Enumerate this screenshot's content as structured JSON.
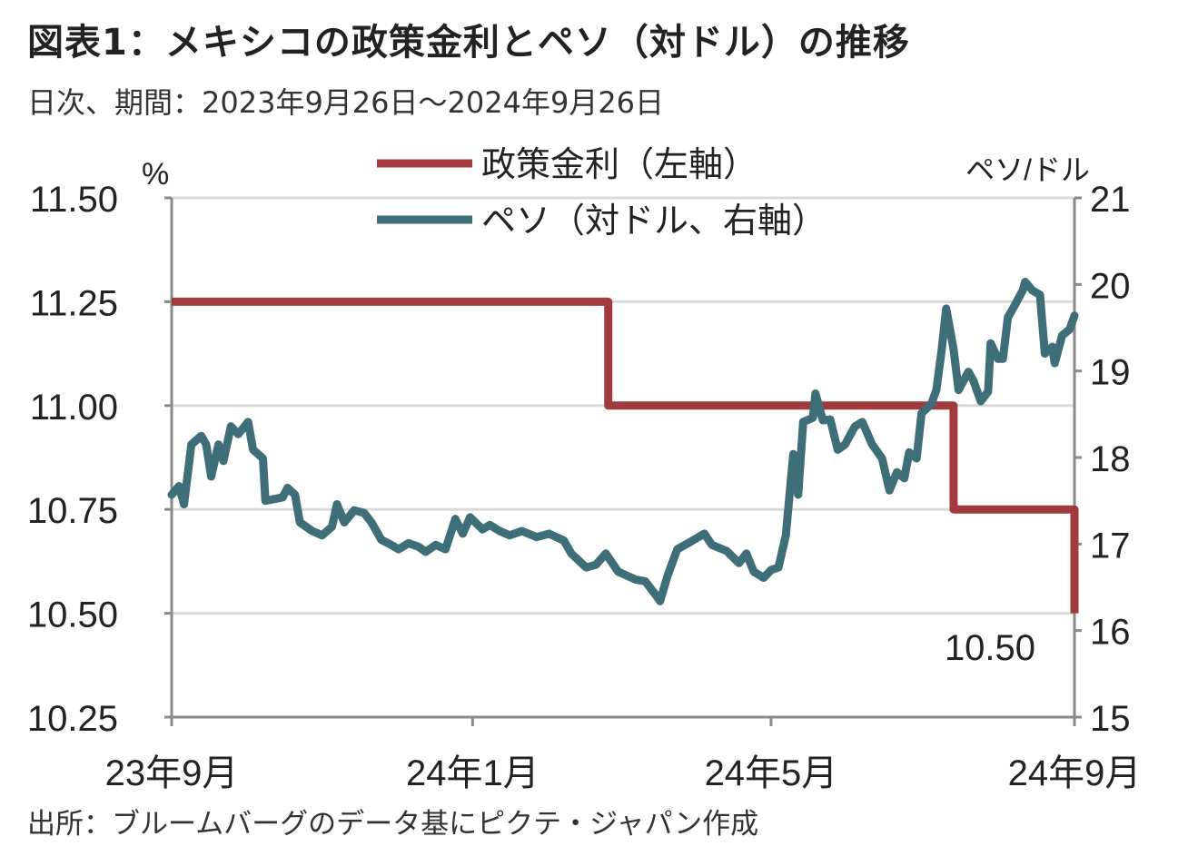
{
  "title": "図表1：メキシコの政策金利とペソ（対ドル）の推移",
  "subtitle": "日次、期間：2023年9月26日～2024年9月26日",
  "source": "出所：ブルームバーグのデータ基にピクテ・ジャパン作成",
  "chart_data": {
    "type": "line",
    "title": "図表1：メキシコの政策金利とペソ（対ドル）の推移",
    "subtitle": "日次、期間：2023年9月26日～2024年9月26日",
    "legend_position": "top-center",
    "grid": true,
    "x_range": [
      "2023-09-26",
      "2024-09-26"
    ],
    "x_ticks": [
      {
        "date": "2023-09-26",
        "label": "23年9月"
      },
      {
        "date": "2024-01-26",
        "label": "24年1月"
      },
      {
        "date": "2024-05-26",
        "label": "24年5月"
      },
      {
        "date": "2024-09-26",
        "label": "24年9月"
      }
    ],
    "y_left": {
      "label": "%",
      "range": [
        10.25,
        11.5
      ],
      "ticks": [
        "10.25",
        "10.50",
        "10.75",
        "11.00",
        "11.25",
        "11.50"
      ]
    },
    "y_right": {
      "label": "ペソ/ドル",
      "range": [
        15,
        21
      ],
      "ticks": [
        "15",
        "16",
        "17",
        "18",
        "19",
        "20",
        "21"
      ]
    },
    "annotation": "10.50",
    "colors": {
      "policy_rate": "#A23B40",
      "peso": "#3E6E78",
      "grid": "#d9d9d9",
      "axis": "#8a8a8a"
    },
    "series": [
      {
        "name": "政策金利（左軸）",
        "axis": "left",
        "step": true,
        "points": [
          [
            "2023-09-26",
            11.25
          ],
          [
            "2024-03-21",
            11.0
          ],
          [
            "2024-08-08",
            10.75
          ],
          [
            "2024-09-26",
            10.5
          ]
        ]
      },
      {
        "name": "ペソ（対ドル、右軸）",
        "axis": "right",
        "points": [
          [
            "2023-09-26",
            17.57
          ],
          [
            "2023-09-29",
            17.67
          ],
          [
            "2023-10-01",
            17.46
          ],
          [
            "2023-10-04",
            18.15
          ],
          [
            "2023-10-08",
            18.25
          ],
          [
            "2023-10-10",
            18.15
          ],
          [
            "2023-10-12",
            17.78
          ],
          [
            "2023-10-15",
            18.15
          ],
          [
            "2023-10-17",
            17.96
          ],
          [
            "2023-10-20",
            18.36
          ],
          [
            "2023-10-23",
            18.27
          ],
          [
            "2023-10-27",
            18.41
          ],
          [
            "2023-10-29",
            18.09
          ],
          [
            "2023-11-02",
            17.99
          ],
          [
            "2023-11-03",
            17.5
          ],
          [
            "2023-11-10",
            17.54
          ],
          [
            "2023-11-12",
            17.65
          ],
          [
            "2023-11-15",
            17.57
          ],
          [
            "2023-11-17",
            17.25
          ],
          [
            "2023-11-22",
            17.15
          ],
          [
            "2023-11-26",
            17.1
          ],
          [
            "2023-11-30",
            17.2
          ],
          [
            "2023-12-02",
            17.46
          ],
          [
            "2023-12-05",
            17.25
          ],
          [
            "2023-12-09",
            17.39
          ],
          [
            "2023-12-13",
            17.36
          ],
          [
            "2023-12-16",
            17.25
          ],
          [
            "2023-12-20",
            17.05
          ],
          [
            "2023-12-24",
            16.99
          ],
          [
            "2023-12-27",
            16.94
          ],
          [
            "2023-12-31",
            17.01
          ],
          [
            "2024-01-04",
            16.97
          ],
          [
            "2024-01-07",
            16.91
          ],
          [
            "2024-01-11",
            16.99
          ],
          [
            "2024-01-15",
            16.94
          ],
          [
            "2024-01-19",
            17.29
          ],
          [
            "2024-01-22",
            17.12
          ],
          [
            "2024-01-25",
            17.31
          ],
          [
            "2024-01-30",
            17.17
          ],
          [
            "2024-02-02",
            17.22
          ],
          [
            "2024-02-06",
            17.15
          ],
          [
            "2024-02-10",
            17.1
          ],
          [
            "2024-02-15",
            17.15
          ],
          [
            "2024-02-21",
            17.08
          ],
          [
            "2024-02-26",
            17.12
          ],
          [
            "2024-03-03",
            17.04
          ],
          [
            "2024-03-06",
            16.89
          ],
          [
            "2024-03-12",
            16.73
          ],
          [
            "2024-03-16",
            16.76
          ],
          [
            "2024-03-20",
            16.89
          ],
          [
            "2024-03-25",
            16.68
          ],
          [
            "2024-04-01",
            16.59
          ],
          [
            "2024-04-05",
            16.57
          ],
          [
            "2024-04-09",
            16.42
          ],
          [
            "2024-04-11",
            16.34
          ],
          [
            "2024-04-14",
            16.63
          ],
          [
            "2024-04-18",
            16.94
          ],
          [
            "2024-04-23",
            17.02
          ],
          [
            "2024-04-29",
            17.12
          ],
          [
            "2024-05-02",
            16.99
          ],
          [
            "2024-05-08",
            16.92
          ],
          [
            "2024-05-13",
            16.78
          ],
          [
            "2024-05-16",
            16.89
          ],
          [
            "2024-05-19",
            16.68
          ],
          [
            "2024-05-23",
            16.61
          ],
          [
            "2024-05-26",
            16.7
          ],
          [
            "2024-05-29",
            16.73
          ],
          [
            "2024-06-01",
            17.1
          ],
          [
            "2024-06-04",
            18.04
          ],
          [
            "2024-06-06",
            17.57
          ],
          [
            "2024-06-08",
            18.41
          ],
          [
            "2024-06-12",
            18.46
          ],
          [
            "2024-06-13",
            18.74
          ],
          [
            "2024-06-16",
            18.43
          ],
          [
            "2024-06-19",
            18.44
          ],
          [
            "2024-06-22",
            18.09
          ],
          [
            "2024-06-25",
            18.15
          ],
          [
            "2024-06-29",
            18.36
          ],
          [
            "2024-07-02",
            18.41
          ],
          [
            "2024-07-06",
            18.15
          ],
          [
            "2024-07-10",
            17.99
          ],
          [
            "2024-07-13",
            17.62
          ],
          [
            "2024-07-16",
            17.83
          ],
          [
            "2024-07-19",
            17.76
          ],
          [
            "2024-07-21",
            18.06
          ],
          [
            "2024-07-24",
            17.99
          ],
          [
            "2024-07-26",
            18.51
          ],
          [
            "2024-07-30",
            18.62
          ],
          [
            "2024-08-01",
            18.78
          ],
          [
            "2024-08-03",
            19.2
          ],
          [
            "2024-08-05",
            19.72
          ],
          [
            "2024-08-08",
            19.25
          ],
          [
            "2024-08-10",
            18.78
          ],
          [
            "2024-08-14",
            18.99
          ],
          [
            "2024-08-16",
            18.89
          ],
          [
            "2024-08-19",
            18.65
          ],
          [
            "2024-08-22",
            18.76
          ],
          [
            "2024-08-23",
            19.32
          ],
          [
            "2024-08-26",
            19.14
          ],
          [
            "2024-08-28",
            19.14
          ],
          [
            "2024-08-30",
            19.62
          ],
          [
            "2024-09-02",
            19.77
          ],
          [
            "2024-09-05",
            19.93
          ],
          [
            "2024-09-06",
            20.03
          ],
          [
            "2024-09-09",
            19.93
          ],
          [
            "2024-09-12",
            19.88
          ],
          [
            "2024-09-14",
            19.2
          ],
          [
            "2024-09-17",
            19.28
          ],
          [
            "2024-09-18",
            19.09
          ],
          [
            "2024-09-21",
            19.41
          ],
          [
            "2024-09-24",
            19.48
          ],
          [
            "2024-09-26",
            19.64
          ]
        ]
      }
    ]
  }
}
